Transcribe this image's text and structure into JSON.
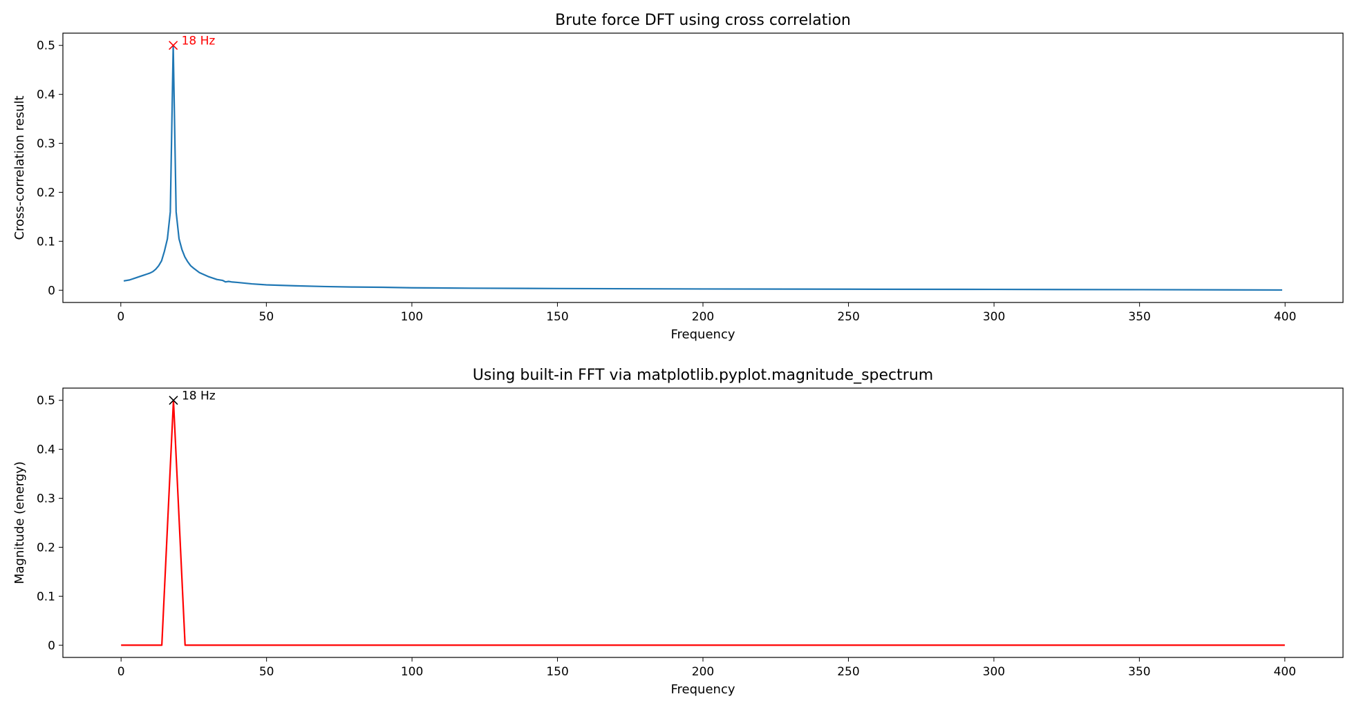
{
  "chart_data": [
    {
      "type": "line",
      "title": "Brute force DFT using cross correlation",
      "xlabel": "Frequency",
      "ylabel": "Cross-correlation result",
      "xlim": [
        -19.9,
        419.9
      ],
      "ylim": [
        -0.025,
        0.525
      ],
      "xticks": [
        0,
        50,
        100,
        150,
        200,
        250,
        300,
        350,
        400
      ],
      "yticks": [
        0.0,
        0.1,
        0.2,
        0.3,
        0.4,
        0.5
      ],
      "grid": false,
      "series": [
        {
          "color": "#1f77b4",
          "points": [
            [
              1,
              0.019
            ],
            [
              3,
              0.021
            ],
            [
              5,
              0.025
            ],
            [
              7,
              0.029
            ],
            [
              8,
              0.031
            ],
            [
              9,
              0.033
            ],
            [
              10,
              0.035
            ],
            [
              11,
              0.038
            ],
            [
              12,
              0.043
            ],
            [
              13,
              0.05
            ],
            [
              14,
              0.06
            ],
            [
              15,
              0.08
            ],
            [
              16,
              0.105
            ],
            [
              17,
              0.16
            ],
            [
              18,
              0.5
            ],
            [
              19,
              0.16
            ],
            [
              20,
              0.105
            ],
            [
              21,
              0.083
            ],
            [
              22,
              0.068
            ],
            [
              23,
              0.058
            ],
            [
              24,
              0.05
            ],
            [
              25,
              0.045
            ],
            [
              27,
              0.036
            ],
            [
              30,
              0.028
            ],
            [
              33,
              0.022
            ],
            [
              35,
              0.02
            ],
            [
              36,
              0.017
            ],
            [
              37,
              0.018
            ],
            [
              38,
              0.017
            ],
            [
              40,
              0.016
            ],
            [
              45,
              0.013
            ],
            [
              50,
              0.011
            ],
            [
              60,
              0.009
            ],
            [
              70,
              0.0075
            ],
            [
              80,
              0.0065
            ],
            [
              90,
              0.006
            ],
            [
              100,
              0.005
            ],
            [
              120,
              0.0042
            ],
            [
              150,
              0.0035
            ],
            [
              200,
              0.0026
            ],
            [
              250,
              0.0021
            ],
            [
              300,
              0.0017
            ],
            [
              350,
              0.0012
            ],
            [
              399,
              0.0005
            ]
          ]
        }
      ],
      "annotation": {
        "text": "18 Hz",
        "x": 18,
        "y": 0.5,
        "color": "#ff0000",
        "marker": "x"
      }
    },
    {
      "type": "line",
      "title": "Using built-in FFT via matplotlib.pyplot.magnitude_spectrum",
      "xlabel": "Frequency",
      "ylabel": "Magnitude (energy)",
      "xlim": [
        -20,
        420
      ],
      "ylim": [
        -0.025,
        0.525
      ],
      "xticks": [
        0,
        50,
        100,
        150,
        200,
        250,
        300,
        350,
        400
      ],
      "yticks": [
        0.0,
        0.1,
        0.2,
        0.3,
        0.4,
        0.5
      ],
      "grid": false,
      "series": [
        {
          "color": "#ff0000",
          "points": [
            [
              0,
              0
            ],
            [
              14,
              0
            ],
            [
              18,
              0.5
            ],
            [
              22,
              0
            ],
            [
              400,
              0
            ]
          ]
        }
      ],
      "annotation": {
        "text": "18 Hz",
        "x": 18,
        "y": 0.5,
        "color": "#000000",
        "marker": "x"
      }
    }
  ]
}
